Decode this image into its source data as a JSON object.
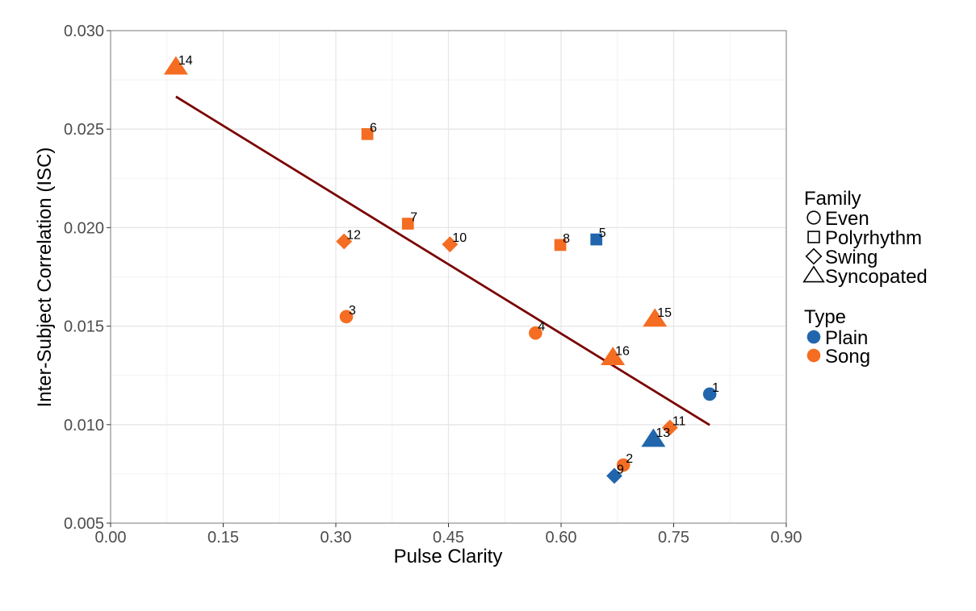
{
  "chart_data": {
    "type": "scatter",
    "xlabel": "Pulse Clarity",
    "ylabel": "Inter-Subject Correlation (ISC)",
    "xlim": [
      0.0,
      0.9
    ],
    "ylim": [
      0.005,
      0.03
    ],
    "x_ticks": [
      "0.00",
      "0.15",
      "0.30",
      "0.45",
      "0.60",
      "0.75",
      "0.90"
    ],
    "y_ticks": [
      "0.005",
      "0.010",
      "0.015",
      "0.020",
      "0.025",
      "0.030"
    ],
    "x_tick_values": [
      0.0,
      0.15,
      0.3,
      0.45,
      0.6,
      0.75,
      0.9
    ],
    "y_tick_values": [
      0.005,
      0.01,
      0.015,
      0.02,
      0.025,
      0.03
    ],
    "grid": true,
    "colors": {
      "Plain": "#2166ac",
      "Song": "#f46d22",
      "fit": "#7a0000"
    },
    "points": [
      {
        "label": "1",
        "x": 0.798,
        "y": 0.01155,
        "family": "Even",
        "type": "Plain"
      },
      {
        "label": "2",
        "x": 0.683,
        "y": 0.00795,
        "family": "Even",
        "type": "Song"
      },
      {
        "label": "3",
        "x": 0.314,
        "y": 0.01548,
        "family": "Even",
        "type": "Song"
      },
      {
        "label": "4",
        "x": 0.566,
        "y": 0.01465,
        "family": "Even",
        "type": "Song"
      },
      {
        "label": "5",
        "x": 0.647,
        "y": 0.0194,
        "family": "Polyrhythm",
        "type": "Plain"
      },
      {
        "label": "6",
        "x": 0.342,
        "y": 0.02475,
        "family": "Polyrhythm",
        "type": "Song"
      },
      {
        "label": "7",
        "x": 0.396,
        "y": 0.0202,
        "family": "Polyrhythm",
        "type": "Song"
      },
      {
        "label": "8",
        "x": 0.599,
        "y": 0.01912,
        "family": "Polyrhythm",
        "type": "Song"
      },
      {
        "label": "9",
        "x": 0.671,
        "y": 0.0074,
        "family": "Swing",
        "type": "Plain"
      },
      {
        "label": "10",
        "x": 0.452,
        "y": 0.01915,
        "family": "Swing",
        "type": "Song"
      },
      {
        "label": "11",
        "x": 0.745,
        "y": 0.00985,
        "family": "Swing",
        "type": "Song"
      },
      {
        "label": "12",
        "x": 0.311,
        "y": 0.0193,
        "family": "Swing",
        "type": "Song"
      },
      {
        "label": "13",
        "x": 0.723,
        "y": 0.00925,
        "family": "Syncopated",
        "type": "Plain"
      },
      {
        "label": "14",
        "x": 0.087,
        "y": 0.02815,
        "family": "Syncopated",
        "type": "Song"
      },
      {
        "label": "15",
        "x": 0.725,
        "y": 0.01535,
        "family": "Syncopated",
        "type": "Song"
      },
      {
        "label": "16",
        "x": 0.669,
        "y": 0.0134,
        "family": "Syncopated",
        "type": "Song"
      }
    ],
    "fit_line": {
      "x": [
        0.087,
        0.798
      ],
      "y": [
        0.02665,
        0.00998
      ]
    },
    "legend": {
      "placement": "right",
      "family_title": "Family",
      "family_items": [
        {
          "label": "Even",
          "shape": "circle"
        },
        {
          "label": "Polyrhythm",
          "shape": "square"
        },
        {
          "label": "Swing",
          "shape": "diamond"
        },
        {
          "label": "Syncopated",
          "shape": "triangle"
        }
      ],
      "type_title": "Type",
      "type_items": [
        {
          "label": "Plain",
          "color_key": "Plain"
        },
        {
          "label": "Song",
          "color_key": "Song"
        }
      ]
    }
  }
}
